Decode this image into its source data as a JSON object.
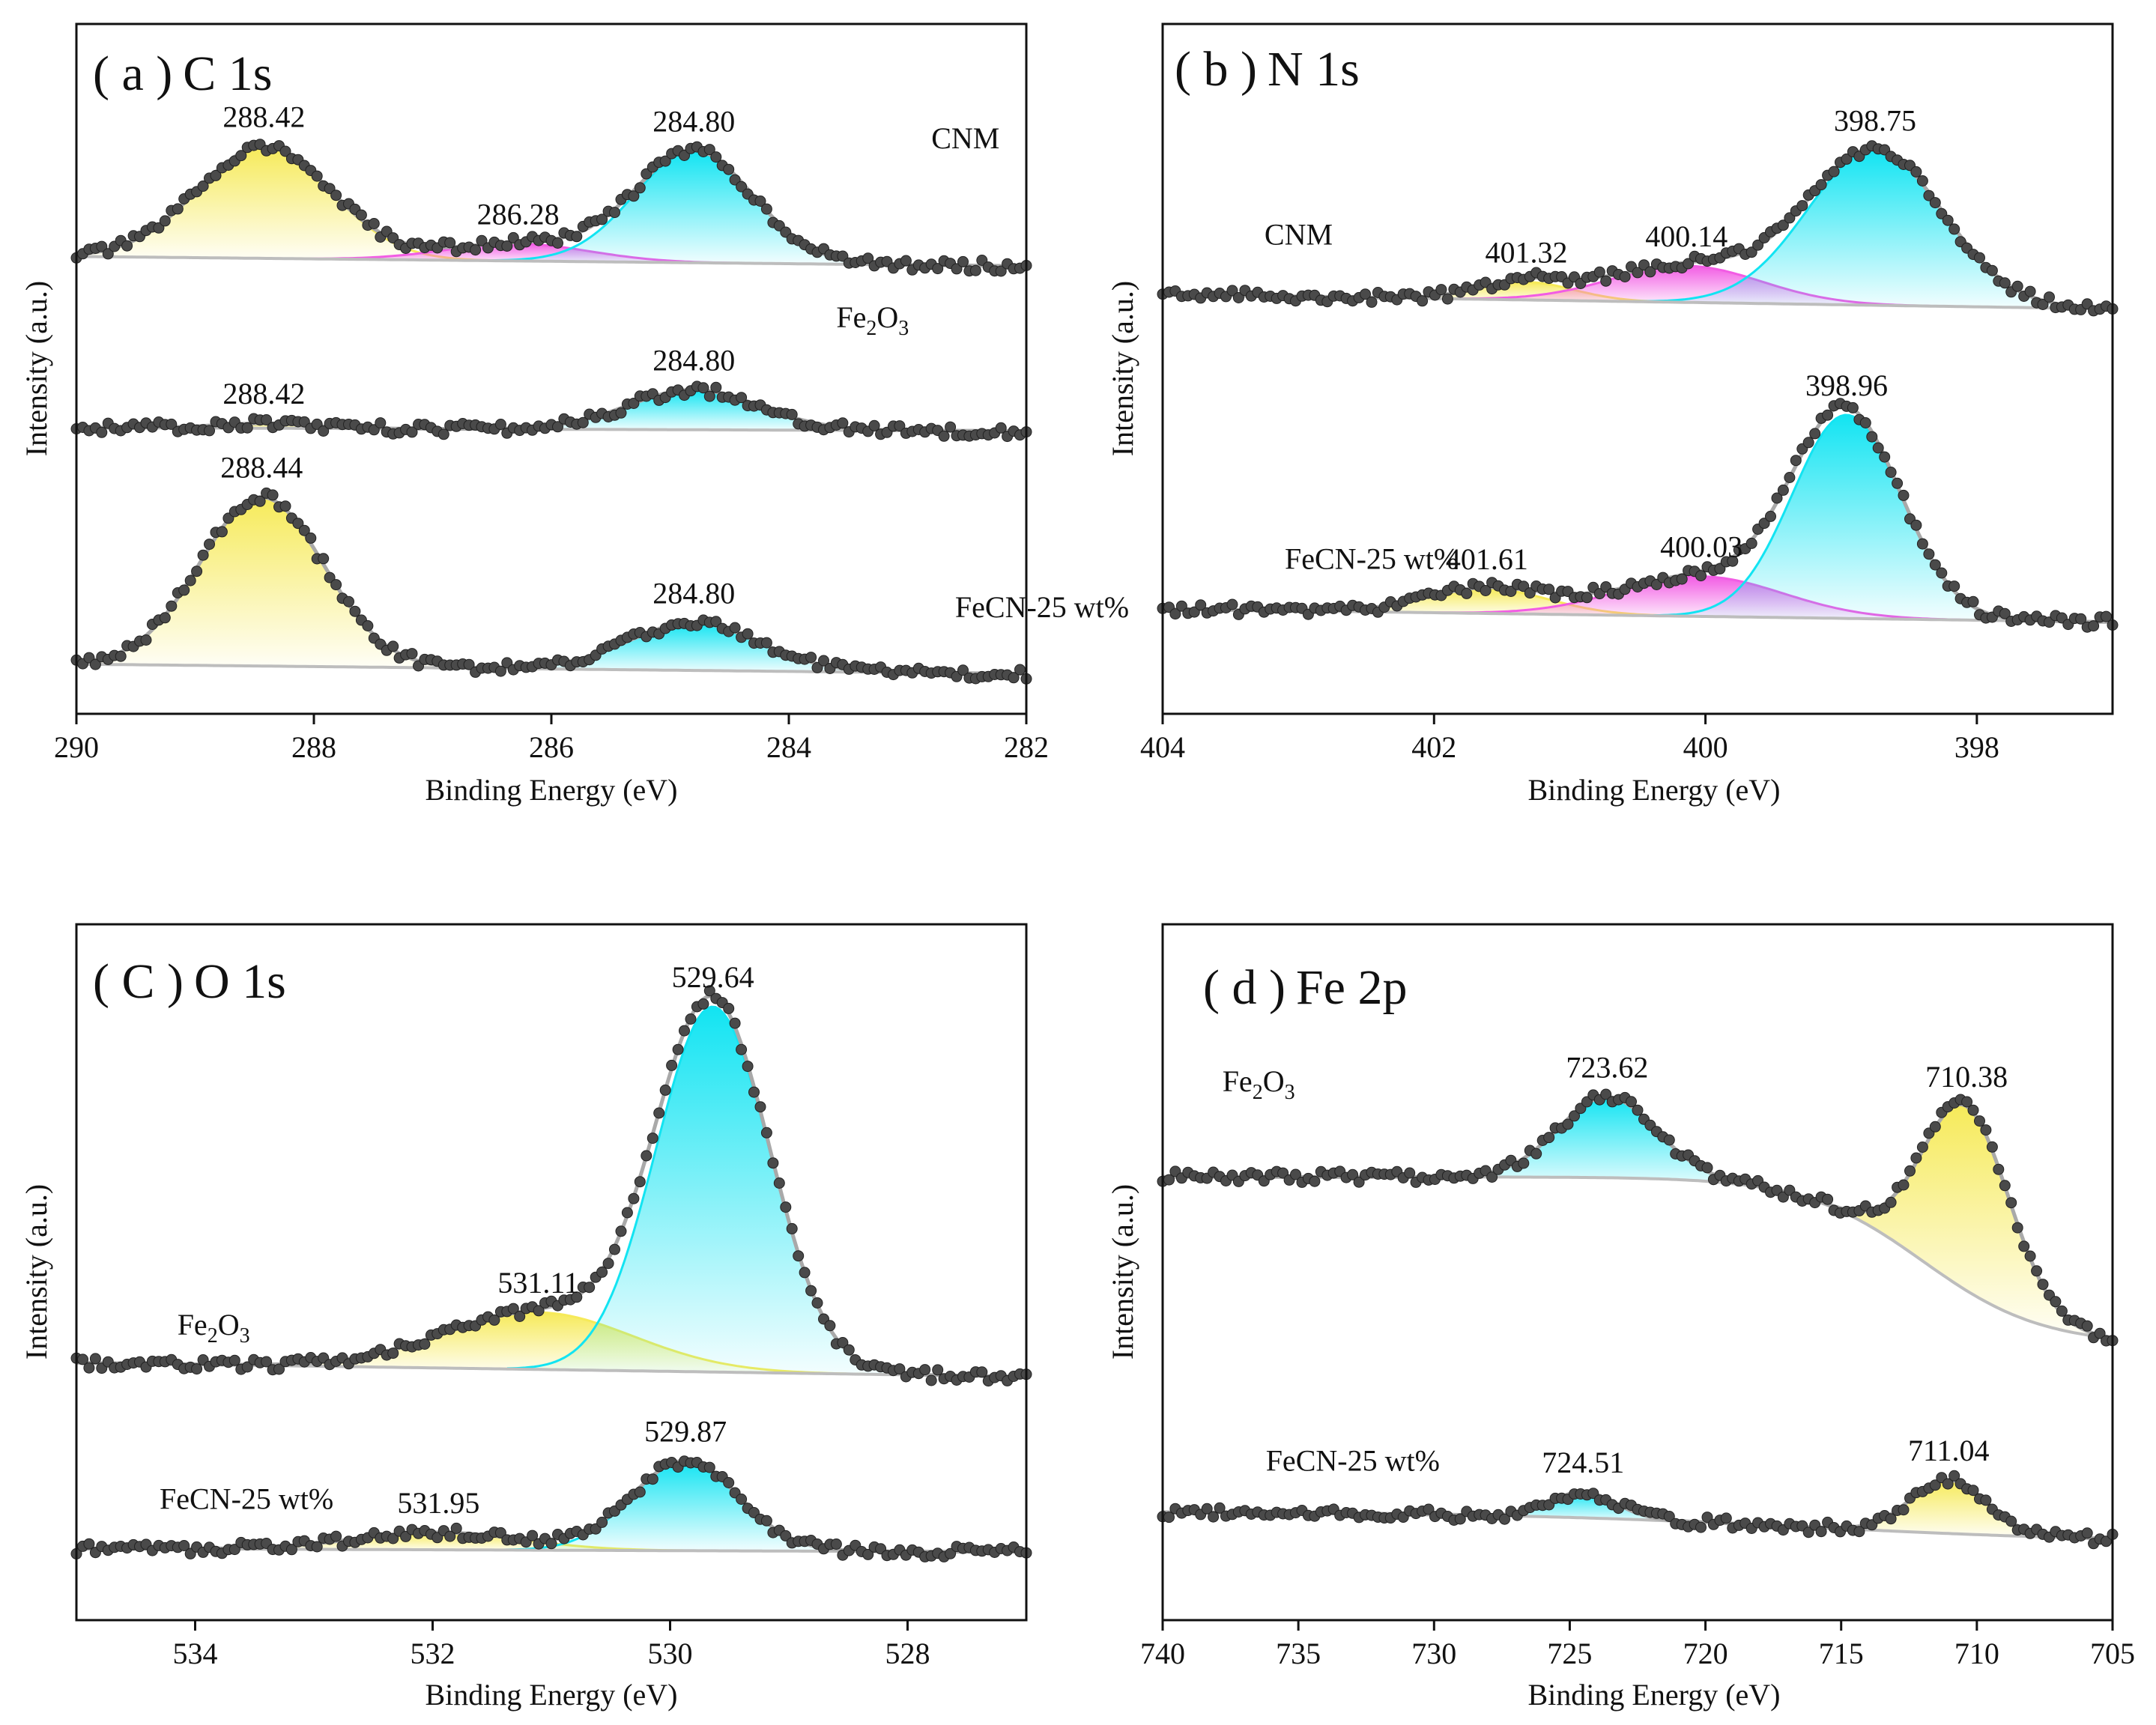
{
  "figure": {
    "colors": {
      "yellow": "#f6ea59",
      "cyan": "#12e4f2",
      "magenta": "#f25ce4",
      "envelope": "#a9a9a9",
      "baseline": "#bdbdbd",
      "points": "#4a4a4a",
      "frame": "#111111"
    }
  },
  "chart_data": [
    {
      "id": "a",
      "type": "area",
      "title_prefix": "( a )",
      "title": "C 1s",
      "xlabel": "Binding Energy (eV)",
      "ylabel": "Intensity (a.u.)",
      "xlim": [
        290,
        282
      ],
      "xticks": [
        290,
        288,
        286,
        284,
        282
      ],
      "ylim": [
        0,
        100
      ],
      "series": [
        {
          "name": "CNM",
          "label_text": "CNM",
          "label_parts": [
            {
              "text": "CNM",
              "sub": false
            }
          ],
          "label_x": 282.8,
          "label_y": 82,
          "base_start": 66.3,
          "base_end": 64.9,
          "peaks": [
            {
              "center": 288.42,
              "height": 16.2,
              "width": 0.56,
              "color": "yellow",
              "label": "288.42"
            },
            {
              "center": 286.28,
              "height": 2.5,
              "width": 0.6,
              "color": "magenta",
              "label": "286.28"
            },
            {
              "center": 284.8,
              "height": 16.2,
              "width": 0.5,
              "color": "cyan",
              "label": "284.80"
            }
          ]
        },
        {
          "name": "Fe2O3",
          "label_text": "Fe2O3",
          "label_parts": [
            {
              "text": "Fe",
              "sub": false
            },
            {
              "text": "2",
              "sub": true
            },
            {
              "text": "O",
              "sub": false
            },
            {
              "text": "3",
              "sub": true
            }
          ],
          "label_x": 283.6,
          "label_y": 56,
          "base_start": 41.5,
          "base_end": 41.0,
          "peaks": [
            {
              "center": 288.42,
              "height": 0.7,
              "width": 0.4,
              "color": "yellow",
              "label": "288.42"
            },
            {
              "center": 284.8,
              "height": 5.8,
              "width": 0.55,
              "color": "cyan",
              "label": "284.80"
            }
          ]
        },
        {
          "name": "FeCN-25 wt%",
          "label_text": "FeCN-25 wt%",
          "label_parts": [
            {
              "text": "FeCN-25 wt%",
              "sub": false
            }
          ],
          "label_x": 282.6,
          "label_y": 14,
          "base_start": 7.2,
          "base_end": 5.8,
          "peaks": [
            {
              "center": 288.44,
              "height": 24.5,
              "width": 0.52,
              "color": "yellow",
              "label": "288.44"
            },
            {
              "center": 284.8,
              "height": 6.9,
              "width": 0.55,
              "color": "cyan",
              "label": "284.80"
            }
          ]
        }
      ]
    },
    {
      "id": "b",
      "type": "area",
      "title_prefix": "( b )",
      "title": "N 1s",
      "xlabel": "Binding Energy (eV)",
      "ylabel": "Intensity (a.u.)",
      "xlim": [
        404,
        397
      ],
      "xticks": [
        404,
        402,
        400,
        398
      ],
      "ylim": [
        0,
        100
      ],
      "series": [
        {
          "name": "CNM",
          "label_text": "CNM",
          "label_parts": [
            {
              "text": "CNM",
              "sub": false
            }
          ],
          "label_x": 403.25,
          "label_y": 68,
          "base_start": 60.8,
          "base_end": 58.7,
          "peaks": [
            {
              "center": 401.32,
              "height": 2.6,
              "width": 0.35,
              "color": "yellow",
              "label": "401.32"
            },
            {
              "center": 400.14,
              "height": 5.3,
              "width": 0.55,
              "color": "magenta",
              "label": "400.14"
            },
            {
              "center": 398.75,
              "height": 22.5,
              "width": 0.5,
              "color": "cyan",
              "label": "398.75"
            }
          ]
        },
        {
          "name": "FeCN-25 wt%",
          "label_text": "FeCN-25 wt%",
          "label_parts": [
            {
              "text": "FeCN-25 wt%",
              "sub": false
            }
          ],
          "label_x": 403.1,
          "label_y": 21,
          "base_start": 15.2,
          "base_end": 13.3,
          "peaks": [
            {
              "center": 401.61,
              "height": 3.6,
              "width": 0.45,
              "color": "yellow",
              "label": "401.61"
            },
            {
              "center": 400.03,
              "height": 5.8,
              "width": 0.6,
              "color": "magenta",
              "label": "400.03"
            },
            {
              "center": 398.96,
              "height": 29.5,
              "width": 0.4,
              "color": "cyan",
              "label": "398.96"
            }
          ]
        }
      ]
    },
    {
      "id": "c",
      "type": "area",
      "title_prefix": "( C )",
      "title": "O 1s",
      "xlabel": "Binding Energy (eV)",
      "ylabel": "Intensity (a.u.)",
      "xlim": [
        535,
        527
      ],
      "xticks": [
        534,
        532,
        530,
        528
      ],
      "ylim": [
        0,
        100
      ],
      "series": [
        {
          "name": "Fe2O3",
          "label_text": "Fe2O3",
          "label_parts": [
            {
              "text": "Fe",
              "sub": false
            },
            {
              "text": "2",
              "sub": true
            },
            {
              "text": "O",
              "sub": false
            },
            {
              "text": "3",
              "sub": true
            }
          ],
          "label_x": 534.15,
          "label_y": 41,
          "base_start": 37.0,
          "base_end": 35.0,
          "peaks": [
            {
              "center": 531.11,
              "height": 8.2,
              "width": 0.8,
              "color": "yellow",
              "label": "531.11"
            },
            {
              "center": 529.64,
              "height": 52.5,
              "width": 0.48,
              "color": "cyan",
              "label": "529.64"
            }
          ]
        },
        {
          "name": "FeCN-25 wt%",
          "label_text": "FeCN-25 wt%",
          "label_parts": [
            {
              "text": "FeCN-25 wt%",
              "sub": false
            }
          ],
          "label_x": 534.3,
          "label_y": 16,
          "base_start": 10.3,
          "base_end": 9.8,
          "peaks": [
            {
              "center": 531.95,
              "height": 2.5,
              "width": 0.7,
              "color": "yellow",
              "label": "531.95"
            },
            {
              "center": 529.87,
              "height": 12.9,
              "width": 0.45,
              "color": "cyan",
              "label": "529.87"
            }
          ]
        }
      ]
    },
    {
      "id": "d",
      "type": "area",
      "title_prefix": "( d )",
      "title": "Fe 2p",
      "xlabel": "Binding Energy (eV)",
      "ylabel": "Intensity (a.u.)",
      "xlim": [
        740,
        705
      ],
      "xticks": [
        740,
        735,
        730,
        725,
        720,
        715,
        710,
        705
      ],
      "ylim": [
        0,
        100
      ],
      "series": [
        {
          "name": "Fe2O3",
          "label_text": "Fe2O3",
          "label_parts": [
            {
              "text": "Fe",
              "sub": false
            },
            {
              "text": "2",
              "sub": true
            },
            {
              "text": "O",
              "sub": false
            },
            {
              "text": "3",
              "sub": true
            }
          ],
          "label_x": 737.8,
          "label_y": 76,
          "base_start": 63.7,
          "base_end": 40.5,
          "shirley_center": 712.0,
          "shirley_width": 2.2,
          "peaks": [
            {
              "center": 723.62,
              "height": 11.6,
              "width": 1.8,
              "color": "cyan",
              "label": "723.62"
            },
            {
              "center": 710.38,
              "height": 26.5,
              "width": 1.6,
              "color": "yellow",
              "label": "710.38"
            }
          ]
        },
        {
          "name": "FeCN-25 wt%",
          "label_text": "FeCN-25 wt%",
          "label_parts": [
            {
              "text": "FeCN-25 wt%",
              "sub": false
            }
          ],
          "label_x": 736.2,
          "label_y": 21.5,
          "base_start": 15.5,
          "base_end": 11.7,
          "shirley_center": 716.0,
          "shirley_width": 6.0,
          "peaks": [
            {
              "center": 724.51,
              "height": 3.7,
              "width": 1.2,
              "color": "cyan",
              "label": "724.51"
            },
            {
              "center": 711.04,
              "height": 7.7,
              "width": 1.4,
              "color": "yellow",
              "label": "711.04"
            }
          ]
        }
      ]
    }
  ]
}
